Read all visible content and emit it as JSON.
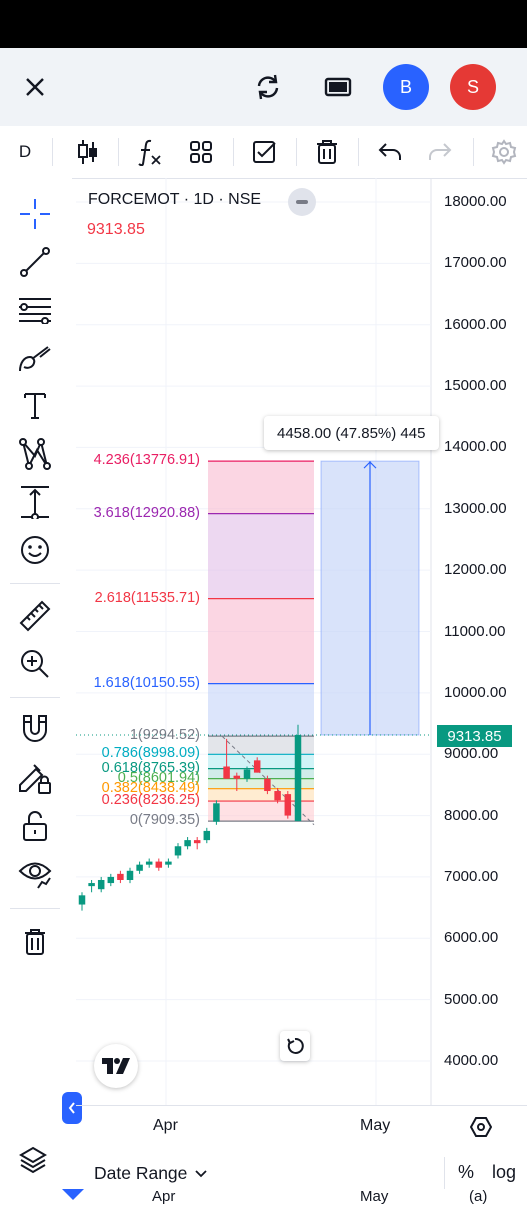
{
  "header": {
    "close_icon": "close-icon",
    "refresh_icon": "refresh-icon",
    "layout_icon": "layout-icon",
    "user_b": "B",
    "user_s": "S",
    "user_b_color": "#2962ff",
    "user_s_color": "#e53935"
  },
  "toolbar": {
    "interval": "D",
    "items": [
      "candles-icon",
      "indicators-icon",
      "templates-icon",
      "checkbox-icon",
      "trash-icon",
      "undo-icon",
      "redo-icon",
      "settings-icon"
    ]
  },
  "left_tools": [
    "crosshair-icon",
    "trendline-icon",
    "fib-lines-icon",
    "brush-icon",
    "text-icon",
    "pattern-icon",
    "measure-arrow-icon",
    "emoji-icon",
    "ruler-icon",
    "zoom-in-icon",
    "magnet-icon",
    "lock-draw-icon",
    "unlock-icon",
    "eye-icon",
    "trash-icon"
  ],
  "legend": {
    "title": "FORCEMOT · 1D · NSE",
    "price": "9313.85"
  },
  "chart_data": {
    "type": "candlestick",
    "symbol": "FORCEMOT",
    "interval": "1D",
    "exchange": "NSE",
    "last_price": 9313.85,
    "last_price_label": "9313.85",
    "y_axis_ticks": [
      "18000.00",
      "17000.00",
      "16000.00",
      "15000.00",
      "14000.00",
      "13000.00",
      "12000.00",
      "11000.00",
      "10000.00",
      "9000.00",
      "8000.00",
      "7000.00",
      "6000.00",
      "5000.00",
      "4000.00"
    ],
    "x_axis_ticks": [
      "Apr",
      "May"
    ],
    "fib_extension": [
      {
        "level": "4.236(13776.91)",
        "value": 13776.91,
        "color": "#e91e63"
      },
      {
        "level": "3.618(12920.88)",
        "value": 12920.88,
        "color": "#9c27b0"
      },
      {
        "level": "2.618(11535.71)",
        "value": 11535.71,
        "color": "#f23645"
      },
      {
        "level": "1.618(10150.55)",
        "value": 10150.55,
        "color": "#2962ff"
      },
      {
        "level": "1(9294.52)",
        "value": 9294.52,
        "color": "#787b86"
      },
      {
        "level": "0.786(8998.09)",
        "value": 8998.09,
        "color": "#00acc1"
      },
      {
        "level": "0.618(8765.39)",
        "value": 8765.39,
        "color": "#089981"
      },
      {
        "level": "0.5(8601.94)",
        "value": 8601.94,
        "color": "#4caf50"
      },
      {
        "level": "0.382(8438.49)",
        "value": 8438.49,
        "color": "#ff9800"
      },
      {
        "level": "0.236(8236.25)",
        "value": 8236.25,
        "color": "#f23645"
      },
      {
        "level": "0(7909.35)",
        "value": 7909.35,
        "color": "#787b86"
      }
    ],
    "price_range_label": "4458.00 (47.85%) 445",
    "candles": [
      {
        "o": 6550,
        "h": 6750,
        "l": 6450,
        "c": 6700,
        "up": true
      },
      {
        "o": 6850,
        "h": 6950,
        "l": 6750,
        "c": 6900,
        "up": true
      },
      {
        "o": 6800,
        "h": 7000,
        "l": 6750,
        "c": 6950,
        "up": true
      },
      {
        "o": 6900,
        "h": 7050,
        "l": 6850,
        "c": 7000,
        "up": true
      },
      {
        "o": 7050,
        "h": 7100,
        "l": 6900,
        "c": 6950,
        "up": false
      },
      {
        "o": 6950,
        "h": 7150,
        "l": 6900,
        "c": 7100,
        "up": true
      },
      {
        "o": 7100,
        "h": 7250,
        "l": 7050,
        "c": 7200,
        "up": true
      },
      {
        "o": 7200,
        "h": 7300,
        "l": 7150,
        "c": 7250,
        "up": true
      },
      {
        "o": 7250,
        "h": 7300,
        "l": 7100,
        "c": 7150,
        "up": false
      },
      {
        "o": 7200,
        "h": 7300,
        "l": 7150,
        "c": 7250,
        "up": true
      },
      {
        "o": 7350,
        "h": 7550,
        "l": 7300,
        "c": 7500,
        "up": true
      },
      {
        "o": 7500,
        "h": 7650,
        "l": 7450,
        "c": 7600,
        "up": true
      },
      {
        "o": 7550,
        "h": 7650,
        "l": 7450,
        "c": 7600,
        "up": false
      },
      {
        "o": 7600,
        "h": 7800,
        "l": 7550,
        "c": 7750,
        "up": true
      },
      {
        "o": 7900,
        "h": 8250,
        "l": 7850,
        "c": 8200,
        "up": true
      },
      {
        "o": 8800,
        "h": 9250,
        "l": 8600,
        "c": 8600,
        "up": false
      },
      {
        "o": 8650,
        "h": 8700,
        "l": 8400,
        "c": 8600,
        "up": false
      },
      {
        "o": 8600,
        "h": 8800,
        "l": 8550,
        "c": 8750,
        "up": true
      },
      {
        "o": 8900,
        "h": 8950,
        "l": 8700,
        "c": 8700,
        "up": false
      },
      {
        "o": 8600,
        "h": 8650,
        "l": 8350,
        "c": 8400,
        "up": false
      },
      {
        "o": 8400,
        "h": 8450,
        "l": 8200,
        "c": 8250,
        "up": false
      },
      {
        "o": 8350,
        "h": 8400,
        "l": 7950,
        "c": 8000,
        "up": false
      },
      {
        "o": 7909,
        "h": 9480,
        "l": 7909,
        "c": 9314,
        "up": true
      }
    ]
  },
  "bottom": {
    "date_range": "Date Range",
    "percent": "%",
    "log": "log",
    "apr_partial": "Apr",
    "may_partial": "May",
    "auto_partial": "(a)"
  }
}
